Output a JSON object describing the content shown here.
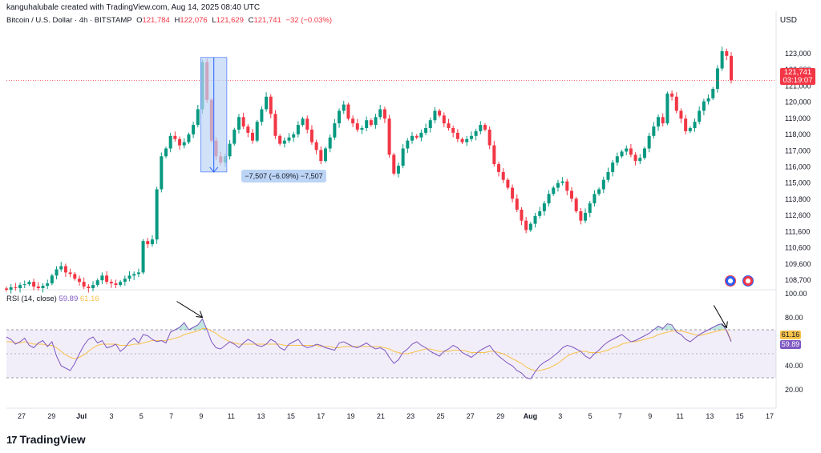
{
  "header": {
    "creator": "kanguhalubale created with TradingView.com, Aug 14, 2025 08:40 UTC",
    "symbol": "Bitcoin / U.S. Dollar · 4h · BITSTAMP",
    "open_label": "O",
    "open": "121,784",
    "high_label": "H",
    "high": "122,076",
    "low_label": "L",
    "low": "121,629",
    "close_label": "C",
    "close": "121,741",
    "change": "−32 (−0.03%)"
  },
  "price_axis": {
    "currency": "USD",
    "ticks": [
      "123,000",
      "122,000",
      "121,000",
      "120,000",
      "119,000",
      "118,000",
      "117,000",
      "116,000",
      "115,000",
      "113,800",
      "112,600",
      "111,600",
      "110,600",
      "109,600",
      "108,700"
    ],
    "last_price": "121,741",
    "countdown": "03:19:07"
  },
  "rsi": {
    "label": "RSI (14, close)",
    "value": "59.89",
    "ma_value": "61.16",
    "ticks": [
      "100.00",
      "80.00",
      "40.00",
      "20.00"
    ],
    "upper_band": 70,
    "lower_band": 30
  },
  "measure": {
    "label": "−7,507 (−6.09%) −7,507"
  },
  "time_axis": {
    "ticks": [
      "27",
      "29",
      "Jul",
      "3",
      "5",
      "7",
      "9",
      "11",
      "13",
      "15",
      "17",
      "19",
      "21",
      "23",
      "25",
      "27",
      "29",
      "Aug",
      "3",
      "5",
      "7",
      "9",
      "11",
      "13",
      "15",
      "17"
    ]
  },
  "branding": {
    "logo_mark": "17",
    "logo_text": "TradingView"
  },
  "colors": {
    "up": "#089981",
    "down": "#f23645",
    "rsi_line": "#7e57c2",
    "rsi_ma": "#f7c24c",
    "measure_fill": "#bcd4f5",
    "measure_line": "#2962ff"
  },
  "chart_data": {
    "type": "candlestick",
    "title": "Bitcoin / U.S. Dollar · 4h · BITSTAMP",
    "ylim": [
      108500,
      123800
    ],
    "closes": [
      108400,
      108550,
      108500,
      108700,
      108750,
      108900,
      108600,
      108500,
      108650,
      108800,
      109300,
      109700,
      109900,
      109500,
      109400,
      109100,
      108900,
      108600,
      108500,
      108700,
      109000,
      109300,
      108900,
      108800,
      108700,
      108900,
      109100,
      109300,
      109400,
      109500,
      111500,
      111300,
      111600,
      114800,
      116900,
      117400,
      118200,
      118000,
      117600,
      117800,
      118300,
      118900,
      119900,
      122900,
      120500,
      117900,
      116900,
      116500,
      116900,
      117700,
      118600,
      119400,
      118800,
      118400,
      117900,
      119100,
      119900,
      120700,
      119600,
      118200,
      117700,
      117900,
      118100,
      118300,
      118900,
      119300,
      118600,
      117800,
      117300,
      116600,
      117400,
      118100,
      119000,
      119800,
      120200,
      119300,
      119000,
      118600,
      118700,
      119200,
      118900,
      119400,
      119900,
      119300,
      117000,
      115800,
      116300,
      117400,
      117900,
      118200,
      118100,
      118400,
      118700,
      119200,
      119800,
      119500,
      119000,
      118700,
      118400,
      118000,
      117800,
      118000,
      118200,
      118500,
      118900,
      118600,
      117600,
      116400,
      115900,
      115400,
      114900,
      114200,
      113500,
      112800,
      112200,
      112600,
      113100,
      113400,
      113900,
      114500,
      114900,
      115200,
      115300,
      114700,
      114200,
      113400,
      112800,
      113300,
      113900,
      114500,
      114800,
      115400,
      115900,
      116500,
      116900,
      117200,
      117400,
      117000,
      116600,
      116800,
      117400,
      118200,
      118800,
      119400,
      119000,
      120900,
      120700,
      119800,
      119300,
      118500,
      118700,
      119100,
      119800,
      120400,
      120600,
      121200,
      122500,
      123600,
      123300,
      121741
    ],
    "rsi_values": [
      64,
      62,
      58,
      60,
      63,
      57,
      55,
      59,
      61,
      56,
      60,
      48,
      40,
      38,
      36,
      42,
      50,
      57,
      62,
      64,
      59,
      61,
      55,
      56,
      58,
      52,
      55,
      60,
      63,
      59,
      66,
      65,
      62,
      60,
      61,
      59,
      68,
      70,
      72,
      76,
      70,
      72,
      74,
      79,
      70,
      60,
      55,
      54,
      57,
      60,
      58,
      55,
      59,
      62,
      60,
      57,
      56,
      58,
      62,
      60,
      55,
      53,
      58,
      60,
      62,
      57,
      55,
      56,
      58,
      57,
      55,
      54,
      53,
      59,
      60,
      58,
      56,
      55,
      57,
      59,
      56,
      54,
      55,
      53,
      47,
      42,
      45,
      51,
      54,
      58,
      60,
      57,
      55,
      52,
      50,
      48,
      52,
      54,
      57,
      55,
      51,
      49,
      47,
      50,
      53,
      55,
      57,
      52,
      48,
      45,
      42,
      40,
      36,
      34,
      30,
      29,
      35,
      40,
      43,
      45,
      48,
      51,
      55,
      57,
      56,
      54,
      52,
      48,
      46,
      50,
      53,
      57,
      60,
      62,
      64,
      66,
      63,
      60,
      61,
      63,
      65,
      67,
      70,
      73,
      71,
      75,
      74,
      68,
      66,
      62,
      60,
      63,
      66,
      68,
      70,
      72,
      74,
      75,
      69,
      60
    ],
    "rsi_ma_values": [
      60,
      60,
      59,
      59,
      60,
      59,
      58,
      58,
      58,
      57,
      57,
      55,
      52,
      49,
      47,
      46,
      47,
      49,
      52,
      55,
      57,
      58,
      58,
      58,
      58,
      57,
      57,
      57,
      58,
      58,
      59,
      60,
      61,
      61,
      61,
      61,
      62,
      63,
      64,
      66,
      67,
      68,
      69,
      71,
      71,
      69,
      67,
      64,
      62,
      60,
      59,
      58,
      58,
      58,
      58,
      58,
      58,
      58,
      58,
      58,
      58,
      57,
      57,
      57,
      57,
      57,
      57,
      57,
      57,
      56,
      56,
      56,
      55,
      55,
      56,
      56,
      56,
      56,
      56,
      56,
      56,
      56,
      56,
      55,
      54,
      52,
      51,
      50,
      50,
      51,
      52,
      53,
      54,
      54,
      53,
      52,
      52,
      52,
      53,
      53,
      53,
      52,
      51,
      51,
      51,
      51,
      52,
      52,
      51,
      50,
      48,
      46,
      44,
      42,
      39,
      37,
      36,
      36,
      37,
      38,
      40,
      42,
      45,
      48,
      50,
      51,
      52,
      52,
      51,
      51,
      51,
      52,
      53,
      55,
      56,
      58,
      59,
      60,
      60,
      61,
      62,
      63,
      64,
      66,
      67,
      68,
      69,
      69,
      69,
      68,
      67,
      66,
      65,
      66,
      67,
      68,
      69,
      70,
      70,
      61.16
    ]
  }
}
